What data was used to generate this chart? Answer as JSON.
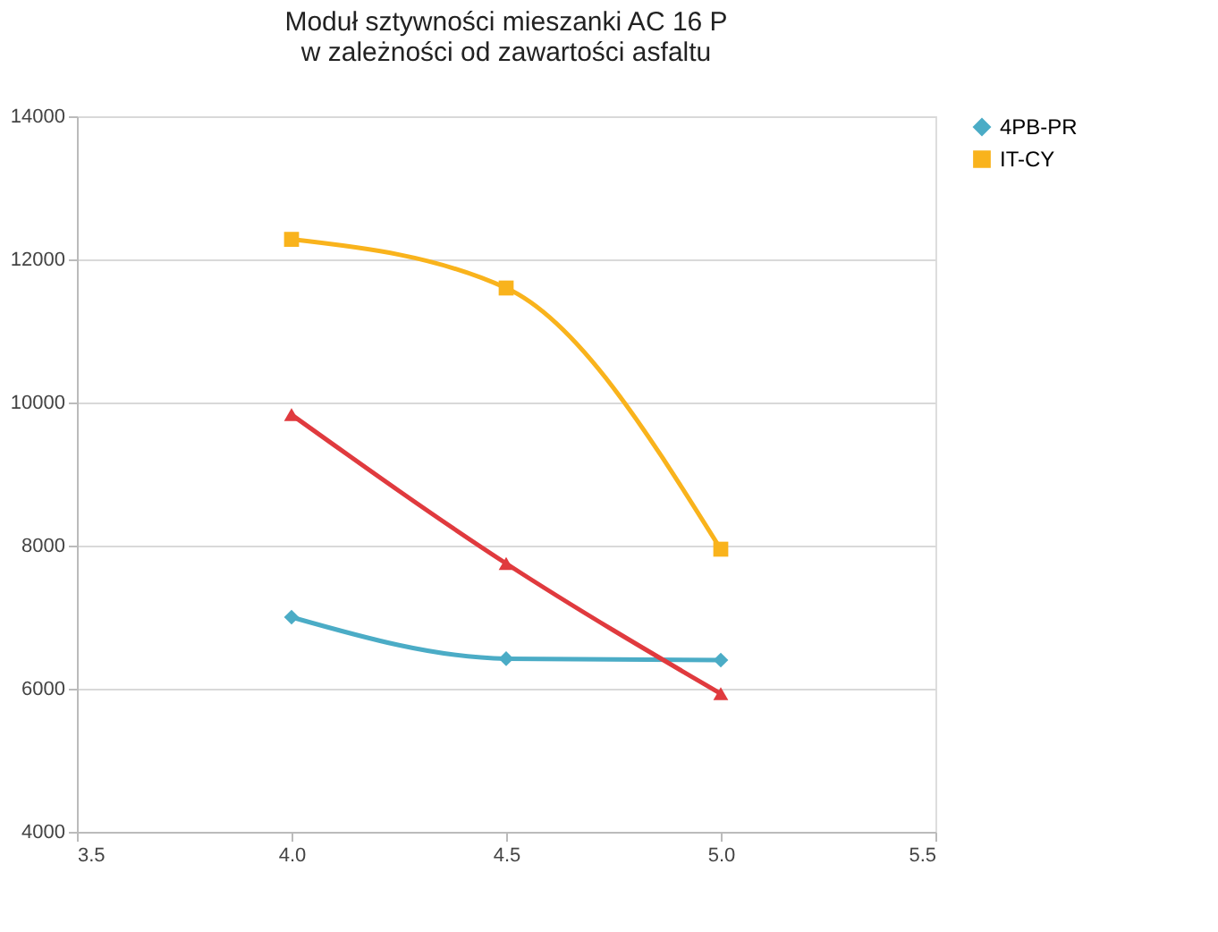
{
  "chart_data": {
    "type": "line",
    "title": "Moduł sztywności mieszanki AC 16 P\nw zależności od zawartości asfaltu",
    "x": [
      4.0,
      4.5,
      5.0
    ],
    "series": [
      {
        "name": "4PB-PR",
        "color": "#4bacc6",
        "marker": "diamond",
        "values": [
          7000,
          6420,
          6400
        ]
      },
      {
        "name": "IT-CY",
        "color": "#f9b31c",
        "marker": "square",
        "values": [
          12280,
          11600,
          7950
        ]
      },
      {
        "color": "#e03a3e",
        "marker": "triangle",
        "values": [
          9830,
          7750,
          5930
        ]
      }
    ],
    "xlim": [
      3.5,
      5.5
    ],
    "xticks": [
      3.5,
      {
        "value": 4,
        "label": "4.0"
      },
      4.5,
      {
        "value": 5,
        "label": "5.0"
      },
      5.5
    ],
    "ylim": [
      4000,
      14000
    ],
    "yticks": [
      4000,
      6000,
      8000,
      10000,
      12000,
      14000
    ],
    "grid": "y",
    "legend": "right"
  }
}
